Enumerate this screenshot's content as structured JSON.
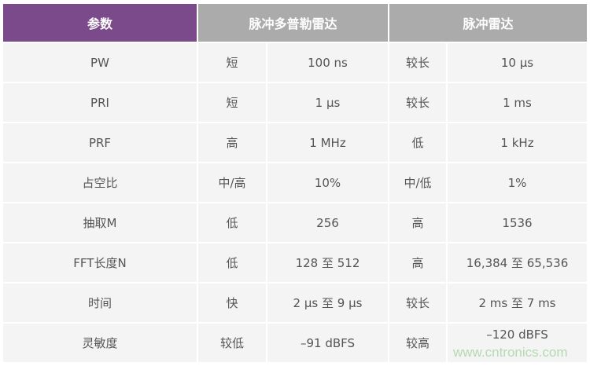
{
  "headers": {
    "param": "参数",
    "pd_radar": "脉冲多普勒雷达",
    "p_radar": "脉冲雷达"
  },
  "rows": [
    {
      "param": "PW",
      "pd_level": "短",
      "pd_value": "100 ns",
      "p_level": "较长",
      "p_value": "10 µs"
    },
    {
      "param": "PRI",
      "pd_level": "短",
      "pd_value": "1 µs",
      "p_level": "较长",
      "p_value": "1 ms"
    },
    {
      "param": "PRF",
      "pd_level": "高",
      "pd_value": "1 MHz",
      "p_level": "低",
      "p_value": "1 kHz"
    },
    {
      "param": "占空比",
      "pd_level": "中/高",
      "pd_value": "10%",
      "p_level": "中/低",
      "p_value": "1%"
    },
    {
      "param": "抽取M",
      "pd_level": "低",
      "pd_value": "256",
      "p_level": "高",
      "p_value": "1536"
    },
    {
      "param": "FFT长度N",
      "pd_level": "低",
      "pd_value": "128 至 512",
      "p_level": "高",
      "p_value": "16,384 至 65,536"
    },
    {
      "param": "时间",
      "pd_level": "快",
      "pd_value": "2 µs 至 9 µs",
      "p_level": "较长",
      "p_value": "2 ms 至 7 ms"
    },
    {
      "param": "灵敏度",
      "pd_level": "较低",
      "pd_value": "–91 dBFS",
      "p_level": "较高",
      "p_value": "–120 dBFS"
    }
  ],
  "watermark": "www.cntronics.com",
  "colors": {
    "header_param": "#7b4a8a",
    "header_radar": "#ababab",
    "cell": "#f4f4f4"
  }
}
